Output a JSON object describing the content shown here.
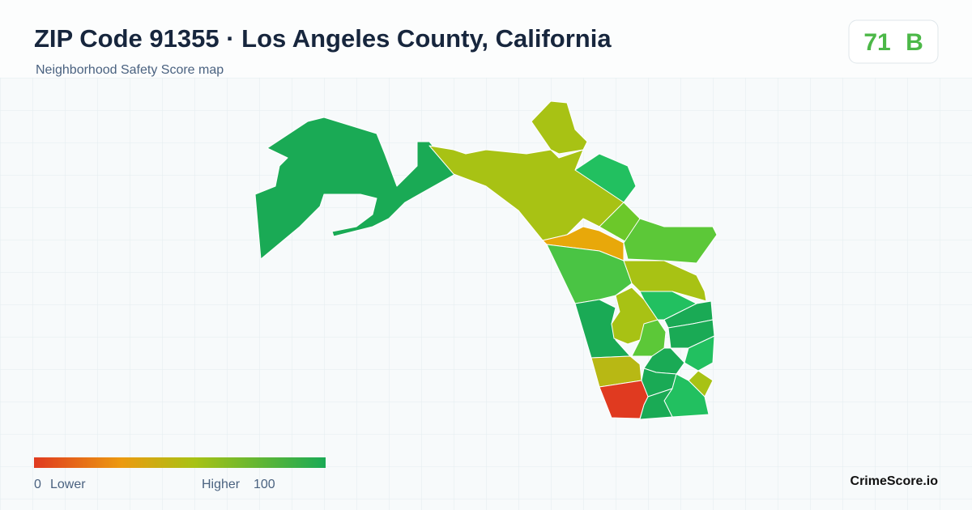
{
  "header": {
    "title": "ZIP Code 91355 · Los Angeles County, California",
    "subtitle": "Neighborhood Safety Score map"
  },
  "score": {
    "value": 71,
    "grade": "B"
  },
  "legend": {
    "min": 0,
    "low_label": "Lower",
    "high_label": "Higher",
    "max": 100
  },
  "brand": "CrimeScore.io"
}
